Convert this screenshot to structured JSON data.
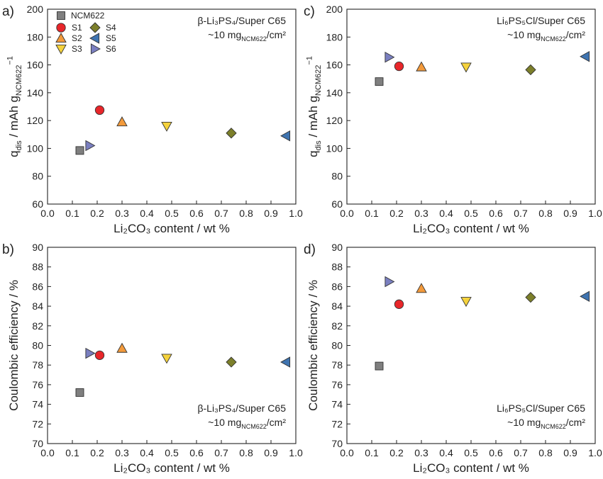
{
  "chart_data": [
    {
      "type": "scatter",
      "panel": "a)",
      "xlabel": "Li₂CO₃ content / wt %",
      "ylabel": "q_dis / mAh g_NCM622^−1",
      "xlim": [
        0.0,
        1.0
      ],
      "ylim": [
        60,
        200
      ],
      "xticks": [
        0.0,
        0.1,
        0.2,
        0.3,
        0.4,
        0.5,
        0.6,
        0.7,
        0.8,
        0.9,
        1.0
      ],
      "yticks": [
        60,
        80,
        100,
        120,
        140,
        160,
        180,
        200
      ],
      "annotation": [
        "β-Li₃PS₄/Super C65",
        "~10 mg_NCM622/cm²"
      ],
      "annotation_position": "top-right",
      "legend_position": "top-left",
      "grid": false,
      "series": [
        {
          "name": "NCM622",
          "marker": "square",
          "color": "#7f7f7f",
          "x": 0.13,
          "y": 98.5
        },
        {
          "name": "S1",
          "marker": "circle",
          "color": "#e8262a",
          "x": 0.21,
          "y": 127.5
        },
        {
          "name": "S2",
          "marker": "triangle-up",
          "color": "#f39a3b",
          "x": 0.3,
          "y": 119.0
        },
        {
          "name": "S3",
          "marker": "triangle-down",
          "color": "#f5d23c",
          "x": 0.48,
          "y": 116.0
        },
        {
          "name": "S4",
          "marker": "diamond",
          "color": "#7c7f2a",
          "x": 0.74,
          "y": 111.0
        },
        {
          "name": "S5",
          "marker": "triangle-left",
          "color": "#3f74b0",
          "x": 0.96,
          "y": 109.0
        },
        {
          "name": "S6",
          "marker": "triangle-right",
          "color": "#7a7fc0",
          "x": 0.17,
          "y": 102.0
        }
      ]
    },
    {
      "type": "scatter",
      "panel": "b)",
      "xlabel": "Li₂CO₃ content / wt %",
      "ylabel": "Coulombic efficiency / %",
      "xlim": [
        0.0,
        1.0
      ],
      "ylim": [
        70,
        90
      ],
      "xticks": [
        0.0,
        0.1,
        0.2,
        0.3,
        0.4,
        0.5,
        0.6,
        0.7,
        0.8,
        0.9,
        1.0
      ],
      "yticks": [
        70,
        72,
        74,
        76,
        78,
        80,
        82,
        84,
        86,
        88,
        90
      ],
      "annotation": [
        "β-Li₃PS₄/Super C65",
        "~10 mg_NCM622/cm²"
      ],
      "annotation_position": "bottom-right",
      "grid": false,
      "series": [
        {
          "name": "NCM622",
          "marker": "square",
          "color": "#7f7f7f",
          "x": 0.13,
          "y": 75.2
        },
        {
          "name": "S1",
          "marker": "circle",
          "color": "#e8262a",
          "x": 0.21,
          "y": 79.0
        },
        {
          "name": "S2",
          "marker": "triangle-up",
          "color": "#f39a3b",
          "x": 0.3,
          "y": 79.7
        },
        {
          "name": "S3",
          "marker": "triangle-down",
          "color": "#f5d23c",
          "x": 0.48,
          "y": 78.7
        },
        {
          "name": "S4",
          "marker": "diamond",
          "color": "#7c7f2a",
          "x": 0.74,
          "y": 78.3
        },
        {
          "name": "S5",
          "marker": "triangle-left",
          "color": "#3f74b0",
          "x": 0.96,
          "y": 78.3
        },
        {
          "name": "S6",
          "marker": "triangle-right",
          "color": "#7a7fc0",
          "x": 0.17,
          "y": 79.2
        }
      ]
    },
    {
      "type": "scatter",
      "panel": "c)",
      "xlabel": "Li₂CO₃ content / wt %",
      "ylabel": "q_dis / mAh g_NCM622^−1",
      "xlim": [
        0.0,
        1.0
      ],
      "ylim": [
        60,
        200
      ],
      "xticks": [
        0.0,
        0.1,
        0.2,
        0.3,
        0.4,
        0.5,
        0.6,
        0.7,
        0.8,
        0.9,
        1.0
      ],
      "yticks": [
        60,
        80,
        100,
        120,
        140,
        160,
        180,
        200
      ],
      "annotation": [
        "Li₆PS₅Cl/Super C65",
        "~10 mg_NCM622/cm²"
      ],
      "annotation_position": "top-right",
      "grid": false,
      "series": [
        {
          "name": "NCM622",
          "marker": "square",
          "color": "#7f7f7f",
          "x": 0.13,
          "y": 148.0
        },
        {
          "name": "S1",
          "marker": "circle",
          "color": "#e8262a",
          "x": 0.21,
          "y": 159.0
        },
        {
          "name": "S2",
          "marker": "triangle-up",
          "color": "#f39a3b",
          "x": 0.3,
          "y": 158.5
        },
        {
          "name": "S3",
          "marker": "triangle-down",
          "color": "#f5d23c",
          "x": 0.48,
          "y": 158.5
        },
        {
          "name": "S4",
          "marker": "diamond",
          "color": "#7c7f2a",
          "x": 0.74,
          "y": 156.5
        },
        {
          "name": "S5",
          "marker": "triangle-left",
          "color": "#3f74b0",
          "x": 0.96,
          "y": 166.0
        },
        {
          "name": "S6",
          "marker": "triangle-right",
          "color": "#7a7fc0",
          "x": 0.17,
          "y": 165.5
        }
      ]
    },
    {
      "type": "scatter",
      "panel": "d)",
      "xlabel": "Li₂CO₃ content / wt %",
      "ylabel": "Coulombic efficiency / %",
      "xlim": [
        0.0,
        1.0
      ],
      "ylim": [
        70,
        90
      ],
      "xticks": [
        0.0,
        0.1,
        0.2,
        0.3,
        0.4,
        0.5,
        0.6,
        0.7,
        0.8,
        0.9,
        1.0
      ],
      "yticks": [
        70,
        72,
        74,
        76,
        78,
        80,
        82,
        84,
        86,
        88,
        90
      ],
      "annotation": [
        "Li₆PS₅Cl/Super C65",
        "~10 mg_NCM622/cm²"
      ],
      "annotation_position": "bottom-right",
      "grid": false,
      "series": [
        {
          "name": "NCM622",
          "marker": "square",
          "color": "#7f7f7f",
          "x": 0.13,
          "y": 77.9
        },
        {
          "name": "S1",
          "marker": "circle",
          "color": "#e8262a",
          "x": 0.21,
          "y": 84.2
        },
        {
          "name": "S2",
          "marker": "triangle-up",
          "color": "#f39a3b",
          "x": 0.3,
          "y": 85.8
        },
        {
          "name": "S3",
          "marker": "triangle-down",
          "color": "#f5d23c",
          "x": 0.48,
          "y": 84.5
        },
        {
          "name": "S4",
          "marker": "diamond",
          "color": "#7c7f2a",
          "x": 0.74,
          "y": 84.9
        },
        {
          "name": "S5",
          "marker": "triangle-left",
          "color": "#3f74b0",
          "x": 0.96,
          "y": 85.0
        },
        {
          "name": "S6",
          "marker": "triangle-right",
          "color": "#7a7fc0",
          "x": 0.17,
          "y": 86.5
        }
      ]
    }
  ]
}
